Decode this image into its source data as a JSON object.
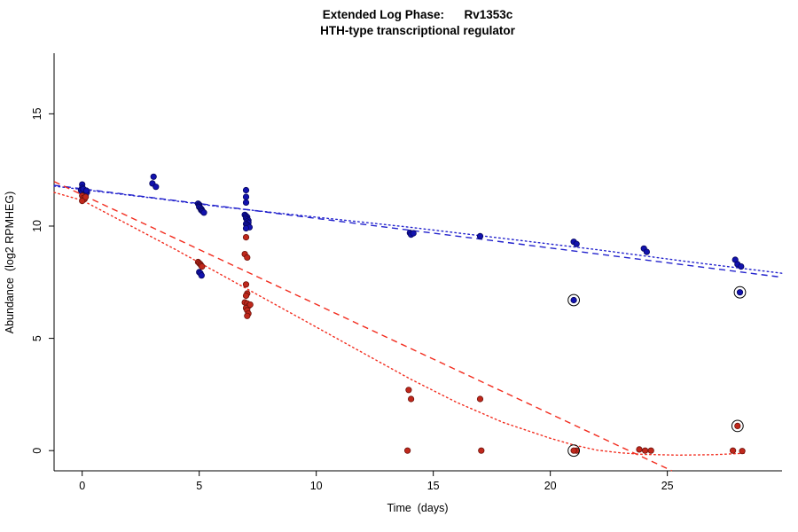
{
  "chart_data": {
    "type": "scatter",
    "title_line1": "Extended Log Phase:      Rv1353c",
    "title_line2": "HTH-type transcriptional regulator",
    "xlabel": "Time  (days)",
    "ylabel": "Abundance  (log2 RPMHEG)",
    "xlim": [
      -1.2,
      29.9
    ],
    "ylim": [
      -0.9,
      17.7
    ],
    "xticks": [
      0,
      5,
      10,
      15,
      20,
      25
    ],
    "yticks": [
      0,
      5,
      10,
      15
    ],
    "grid": false,
    "legend": "none",
    "axis_color": "#000000",
    "series": [
      {
        "name": "series-blue",
        "color": "#1212AE",
        "edge": "#06065E",
        "points": [
          [
            0,
            11.85
          ],
          [
            0,
            11.7
          ],
          [
            -0.05,
            11.6
          ],
          [
            0.05,
            11.55
          ],
          [
            0,
            11.5
          ],
          [
            0.1,
            11.45
          ],
          [
            0.12,
            11.4
          ],
          [
            0.15,
            11.35
          ],
          [
            0.1,
            11.25
          ],
          [
            0.2,
            11.5
          ],
          [
            0.05,
            11.65
          ],
          [
            0.18,
            11.58
          ],
          [
            3,
            11.9
          ],
          [
            3.05,
            12.2
          ],
          [
            3.15,
            11.75
          ],
          [
            4.95,
            11.0
          ],
          [
            5,
            10.95
          ],
          [
            5,
            10.9
          ],
          [
            5,
            10.85
          ],
          [
            5.05,
            10.8
          ],
          [
            5.08,
            10.72
          ],
          [
            5.1,
            10.75
          ],
          [
            5.12,
            10.7
          ],
          [
            5.15,
            10.65
          ],
          [
            5.2,
            10.6
          ],
          [
            5,
            7.95
          ],
          [
            5.05,
            7.9
          ],
          [
            5.1,
            7.8
          ],
          [
            7,
            11.6
          ],
          [
            7,
            11.3
          ],
          [
            7,
            11.05
          ],
          [
            6.95,
            10.5
          ],
          [
            7,
            10.45
          ],
          [
            7.05,
            10.4
          ],
          [
            7,
            10.35
          ],
          [
            7.05,
            10.3
          ],
          [
            7.1,
            10.25
          ],
          [
            7.05,
            10.2
          ],
          [
            7.1,
            10.15
          ],
          [
            7,
            10.1
          ],
          [
            7.05,
            10.05
          ],
          [
            7.1,
            10.0
          ],
          [
            7.15,
            9.95
          ],
          [
            7,
            9.9
          ],
          [
            14,
            9.7
          ],
          [
            14.05,
            9.62
          ],
          [
            14.15,
            9.68
          ],
          [
            17,
            9.55
          ],
          [
            21,
            9.3
          ],
          [
            21.12,
            9.2
          ],
          [
            24,
            9.0
          ],
          [
            24.12,
            8.85
          ],
          [
            27.9,
            8.5
          ],
          [
            28,
            8.3
          ],
          [
            28.15,
            8.2
          ]
        ],
        "circled_points": [
          [
            21,
            6.7
          ],
          [
            28.1,
            7.05
          ]
        ]
      },
      {
        "name": "series-red",
        "color": "#C0281C",
        "edge": "#6E120B",
        "points": [
          [
            0,
            11.35
          ],
          [
            0.05,
            11.25
          ],
          [
            0.1,
            11.2
          ],
          [
            0,
            11.12
          ],
          [
            0.15,
            11.3
          ],
          [
            4.95,
            8.4
          ],
          [
            5,
            8.35
          ],
          [
            5.05,
            8.3
          ],
          [
            5.08,
            8.25
          ],
          [
            5.12,
            8.2
          ],
          [
            7,
            9.5
          ],
          [
            6.95,
            8.75
          ],
          [
            7.05,
            8.6
          ],
          [
            7,
            7.4
          ],
          [
            7.05,
            7.0
          ],
          [
            7,
            6.9
          ],
          [
            6.95,
            6.6
          ],
          [
            7.05,
            6.55
          ],
          [
            7.12,
            6.45
          ],
          [
            7,
            6.35
          ],
          [
            7.05,
            6.25
          ],
          [
            7.1,
            6.1
          ],
          [
            7.05,
            6.0
          ],
          [
            7.18,
            6.5
          ],
          [
            13.95,
            2.7
          ],
          [
            14.05,
            2.3
          ],
          [
            13.9,
            0.0
          ],
          [
            17,
            2.3
          ],
          [
            17.05,
            0.0
          ],
          [
            21.12,
            0.0
          ],
          [
            23.8,
            0.05
          ],
          [
            24.05,
            0.0
          ],
          [
            24.3,
            0.0
          ],
          [
            27.8,
            0.0
          ],
          [
            28.2,
            -0.02
          ]
        ],
        "circled_points": [
          [
            21,
            0.0
          ],
          [
            28,
            1.1
          ]
        ]
      }
    ],
    "trend_lines": [
      {
        "name": "blue-dashed",
        "style": "dashed",
        "color": "#2323CD",
        "points": [
          [
            -1.2,
            11.82
          ],
          [
            29.9,
            7.72
          ]
        ]
      },
      {
        "name": "blue-dotted",
        "style": "dotted",
        "color": "#2323CD",
        "points": [
          [
            -1.2,
            11.78
          ],
          [
            3,
            11.25
          ],
          [
            6,
            10.85
          ],
          [
            10,
            10.4
          ],
          [
            14,
            9.95
          ],
          [
            18,
            9.45
          ],
          [
            22,
            8.95
          ],
          [
            26,
            8.4
          ],
          [
            29.9,
            7.9
          ]
        ]
      },
      {
        "name": "red-dashed",
        "style": "dashed",
        "color": "#F22C1E",
        "points": [
          [
            -1.2,
            11.98
          ],
          [
            25.2,
            -0.9
          ]
        ]
      },
      {
        "name": "red-dotted",
        "style": "dotted",
        "color": "#F22C1E",
        "points": [
          [
            -1.2,
            11.5
          ],
          [
            0,
            11.15
          ],
          [
            2,
            10.05
          ],
          [
            4,
            8.95
          ],
          [
            6,
            7.8
          ],
          [
            8,
            6.65
          ],
          [
            10,
            5.5
          ],
          [
            12,
            4.35
          ],
          [
            14,
            3.2
          ],
          [
            16,
            2.15
          ],
          [
            18,
            1.25
          ],
          [
            20,
            0.55
          ],
          [
            21,
            0.25
          ],
          [
            22,
            0.02
          ],
          [
            23,
            -0.1
          ],
          [
            24,
            -0.17
          ],
          [
            25.5,
            -0.2
          ],
          [
            27,
            -0.18
          ],
          [
            28.3,
            -0.12
          ]
        ]
      }
    ]
  }
}
